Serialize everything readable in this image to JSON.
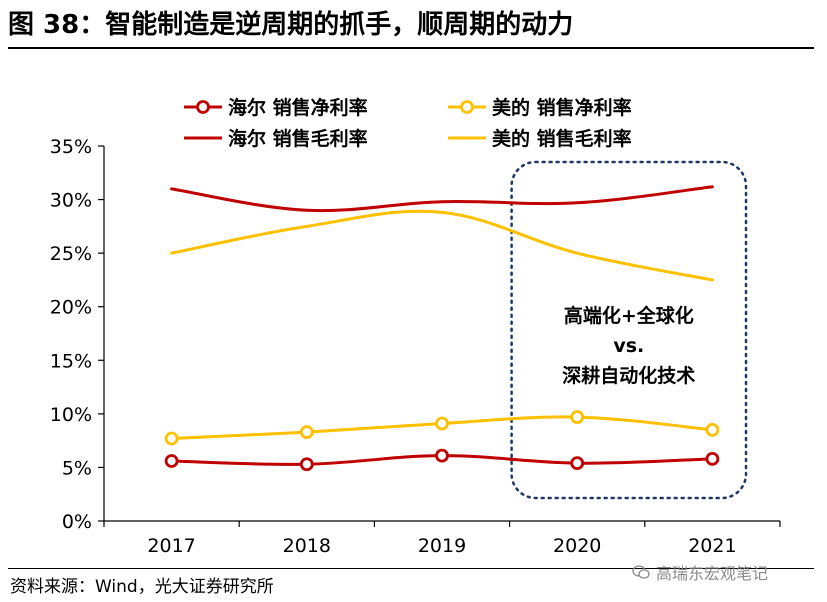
{
  "title": "图 38：智能制造是逆周期的抓手，顺周期的动力",
  "source": "资料来源：Wind，光大证券研究所",
  "watermark": "高瑞东宏观笔记",
  "colors": {
    "red": "#C00000",
    "yellow": "#FFC000",
    "box": "#1F3864"
  },
  "chart_data": {
    "type": "line",
    "categories": [
      "2017",
      "2018",
      "2019",
      "2020",
      "2021"
    ],
    "ylim": [
      0,
      35
    ],
    "yticks": [
      0,
      5,
      10,
      15,
      20,
      25,
      30,
      35
    ],
    "ytick_labels": [
      "0%",
      "5%",
      "10%",
      "15%",
      "20%",
      "25%",
      "30%",
      "35%"
    ],
    "series": [
      {
        "name": "海尔 销售净利率",
        "color": "#C00000",
        "markers": true,
        "values": [
          5.6,
          5.3,
          6.1,
          5.4,
          5.8
        ]
      },
      {
        "name": "美的 销售净利率",
        "color": "#FFC000",
        "markers": true,
        "values": [
          7.7,
          8.3,
          9.1,
          9.7,
          8.5
        ]
      },
      {
        "name": "海尔 销售毛利率",
        "color": "#C00000",
        "markers": false,
        "values": [
          31.0,
          29.0,
          29.8,
          29.7,
          31.2
        ]
      },
      {
        "name": "美的 销售毛利率",
        "color": "#FFC000",
        "markers": false,
        "values": [
          25.0,
          27.5,
          28.8,
          25.0,
          22.5
        ]
      }
    ],
    "annotation": {
      "lines": [
        "高端化+全球化",
        "vs.",
        "深耕自动化技术"
      ],
      "category_range": [
        "2020",
        "2021"
      ]
    }
  }
}
